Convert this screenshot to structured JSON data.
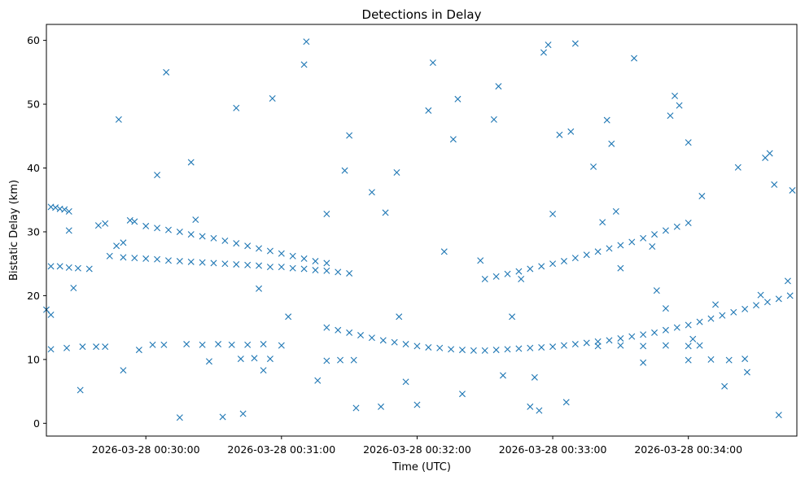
{
  "chart_data": {
    "type": "scatter",
    "title": "Detections in Delay",
    "xlabel": "Time (UTC)",
    "ylabel": "Bistatic Delay (km)",
    "x_ticks": [
      "2026-03-28 00:30:00",
      "2026-03-28 00:31:00",
      "2026-03-28 00:32:00",
      "2026-03-28 00:33:00",
      "2026-03-28 00:34:00"
    ],
    "y_ticks": [
      0,
      10,
      20,
      30,
      40,
      50,
      60
    ],
    "xlim": [
      "2026-03-28 00:29:16",
      "2026-03-28 00:34:48"
    ],
    "ylim": [
      -2,
      62.5
    ],
    "grid": false,
    "marker": "x",
    "color": "#1f77b4",
    "series": [
      {
        "points": [
          [
            "00:29:18",
            33.9
          ],
          [
            "00:29:20",
            33.8
          ],
          [
            "00:29:22",
            33.6
          ],
          [
            "00:29:24",
            33.5
          ],
          [
            "00:29:26",
            33.2
          ],
          [
            "00:29:39",
            31.0
          ],
          [
            "00:29:42",
            31.3
          ],
          [
            "00:29:47",
            27.8
          ],
          [
            "00:29:50",
            28.3
          ],
          [
            "00:29:53",
            31.8
          ],
          [
            "00:29:55",
            31.6
          ],
          [
            "00:30:00",
            30.9
          ],
          [
            "00:30:05",
            30.6
          ],
          [
            "00:30:10",
            30.3
          ],
          [
            "00:30:15",
            30.0
          ],
          [
            "00:30:20",
            29.6
          ],
          [
            "00:30:25",
            29.3
          ],
          [
            "00:30:30",
            29.0
          ],
          [
            "00:30:35",
            28.6
          ],
          [
            "00:30:40",
            28.2
          ],
          [
            "00:30:45",
            27.8
          ],
          [
            "00:30:50",
            27.4
          ],
          [
            "00:30:55",
            27.0
          ],
          [
            "00:31:00",
            26.6
          ],
          [
            "00:31:05",
            26.2
          ],
          [
            "00:31:10",
            25.8
          ],
          [
            "00:31:15",
            25.4
          ],
          [
            "00:31:20",
            25.1
          ],
          [
            "00:29:18",
            24.6
          ],
          [
            "00:29:22",
            24.6
          ],
          [
            "00:29:26",
            24.4
          ],
          [
            "00:29:30",
            24.3
          ],
          [
            "00:29:35",
            24.2
          ],
          [
            "00:29:44",
            26.2
          ],
          [
            "00:29:50",
            26.0
          ],
          [
            "00:29:55",
            25.9
          ],
          [
            "00:30:00",
            25.8
          ],
          [
            "00:30:05",
            25.7
          ],
          [
            "00:30:10",
            25.5
          ],
          [
            "00:30:15",
            25.4
          ],
          [
            "00:30:20",
            25.3
          ],
          [
            "00:30:25",
            25.2
          ],
          [
            "00:30:30",
            25.1
          ],
          [
            "00:30:35",
            25.0
          ],
          [
            "00:30:40",
            24.9
          ],
          [
            "00:30:45",
            24.8
          ],
          [
            "00:30:50",
            24.7
          ],
          [
            "00:30:55",
            24.5
          ],
          [
            "00:31:00",
            24.5
          ],
          [
            "00:31:05",
            24.3
          ],
          [
            "00:31:10",
            24.2
          ],
          [
            "00:31:15",
            24.0
          ],
          [
            "00:31:20",
            23.9
          ],
          [
            "00:31:25",
            23.7
          ],
          [
            "00:31:30",
            23.5
          ],
          [
            "00:29:18",
            11.6
          ],
          [
            "00:29:25",
            11.8
          ],
          [
            "00:29:32",
            12.0
          ],
          [
            "00:29:38",
            12.0
          ],
          [
            "00:29:42",
            12.0
          ],
          [
            "00:30:03",
            12.3
          ],
          [
            "00:30:08",
            12.3
          ],
          [
            "00:30:18",
            12.4
          ],
          [
            "00:30:25",
            12.3
          ],
          [
            "00:30:32",
            12.4
          ],
          [
            "00:30:38",
            12.3
          ],
          [
            "00:30:45",
            12.3
          ],
          [
            "00:30:52",
            12.4
          ],
          [
            "00:31:00",
            12.2
          ],
          [
            "00:30:42",
            10.1
          ],
          [
            "00:30:48",
            10.2
          ],
          [
            "00:30:55",
            10.1
          ],
          [
            "00:31:20",
            9.8
          ],
          [
            "00:31:26",
            9.9
          ],
          [
            "00:31:32",
            9.9
          ],
          [
            "00:31:20",
            15.0
          ],
          [
            "00:31:25",
            14.6
          ],
          [
            "00:31:30",
            14.2
          ],
          [
            "00:31:35",
            13.8
          ],
          [
            "00:31:40",
            13.4
          ],
          [
            "00:31:45",
            13.0
          ],
          [
            "00:31:50",
            12.7
          ],
          [
            "00:31:55",
            12.4
          ],
          [
            "00:32:00",
            12.1
          ],
          [
            "00:32:05",
            11.9
          ],
          [
            "00:32:10",
            11.8
          ],
          [
            "00:32:15",
            11.6
          ],
          [
            "00:32:20",
            11.5
          ],
          [
            "00:32:25",
            11.4
          ],
          [
            "00:32:30",
            11.4
          ],
          [
            "00:32:35",
            11.5
          ],
          [
            "00:32:40",
            11.6
          ],
          [
            "00:32:45",
            11.7
          ],
          [
            "00:32:50",
            11.8
          ],
          [
            "00:32:55",
            11.9
          ],
          [
            "00:33:00",
            12.0
          ],
          [
            "00:33:05",
            12.2
          ],
          [
            "00:33:10",
            12.4
          ],
          [
            "00:33:15",
            12.6
          ],
          [
            "00:33:20",
            12.8
          ],
          [
            "00:33:25",
            13.0
          ],
          [
            "00:33:30",
            13.3
          ],
          [
            "00:33:35",
            13.6
          ],
          [
            "00:33:40",
            13.9
          ],
          [
            "00:33:45",
            14.2
          ],
          [
            "00:33:50",
            14.6
          ],
          [
            "00:33:55",
            15.0
          ],
          [
            "00:34:00",
            15.4
          ],
          [
            "00:34:05",
            15.9
          ],
          [
            "00:34:10",
            16.4
          ],
          [
            "00:34:15",
            16.9
          ],
          [
            "00:34:20",
            17.4
          ],
          [
            "00:34:25",
            17.9
          ],
          [
            "00:34:30",
            18.5
          ],
          [
            "00:34:35",
            19.0
          ],
          [
            "00:34:40",
            19.5
          ],
          [
            "00:34:45",
            20.0
          ],
          [
            "00:32:30",
            22.6
          ],
          [
            "00:32:35",
            23.0
          ],
          [
            "00:32:40",
            23.4
          ],
          [
            "00:32:45",
            23.8
          ],
          [
            "00:32:50",
            24.2
          ],
          [
            "00:32:55",
            24.6
          ],
          [
            "00:33:00",
            25.0
          ],
          [
            "00:33:05",
            25.4
          ],
          [
            "00:33:10",
            25.9
          ],
          [
            "00:33:15",
            26.4
          ],
          [
            "00:33:20",
            26.9
          ],
          [
            "00:33:25",
            27.4
          ],
          [
            "00:33:30",
            27.9
          ],
          [
            "00:33:35",
            28.4
          ],
          [
            "00:33:40",
            29.0
          ],
          [
            "00:33:45",
            29.6
          ],
          [
            "00:33:50",
            30.2
          ],
          [
            "00:33:55",
            30.8
          ],
          [
            "00:34:00",
            31.4
          ],
          [
            "00:33:20",
            12.1
          ],
          [
            "00:33:30",
            12.2
          ],
          [
            "00:33:40",
            12.1
          ],
          [
            "00:33:50",
            12.2
          ],
          [
            "00:34:00",
            12.1
          ],
          [
            "00:34:05",
            12.2
          ],
          [
            "00:34:00",
            9.9
          ],
          [
            "00:34:10",
            10.0
          ],
          [
            "00:34:18",
            9.9
          ],
          [
            "00:34:25",
            10.1
          ],
          [
            "00:29:16",
            17.8
          ],
          [
            "00:29:18",
            17.0
          ],
          [
            "00:29:26",
            30.2
          ],
          [
            "00:29:28",
            21.2
          ],
          [
            "00:29:31",
            5.2
          ],
          [
            "00:29:48",
            47.6
          ],
          [
            "00:29:50",
            8.3
          ],
          [
            "00:29:57",
            11.5
          ],
          [
            "00:30:05",
            38.9
          ],
          [
            "00:30:09",
            55.0
          ],
          [
            "00:30:15",
            0.9
          ],
          [
            "00:30:20",
            40.9
          ],
          [
            "00:30:22",
            31.9
          ],
          [
            "00:30:28",
            9.7
          ],
          [
            "00:30:34",
            1.0
          ],
          [
            "00:30:40",
            49.4
          ],
          [
            "00:30:43",
            1.5
          ],
          [
            "00:30:50",
            21.1
          ],
          [
            "00:30:52",
            8.3
          ],
          [
            "00:30:56",
            50.9
          ],
          [
            "00:31:03",
            16.7
          ],
          [
            "00:31:10",
            56.2
          ],
          [
            "00:31:11",
            59.8
          ],
          [
            "00:31:16",
            6.7
          ],
          [
            "00:31:20",
            32.8
          ],
          [
            "00:31:28",
            39.6
          ],
          [
            "00:31:30",
            45.1
          ],
          [
            "00:31:33",
            2.4
          ],
          [
            "00:31:40",
            36.2
          ],
          [
            "00:31:44",
            2.6
          ],
          [
            "00:31:46",
            33.0
          ],
          [
            "00:31:51",
            39.3
          ],
          [
            "00:31:52",
            16.7
          ],
          [
            "00:31:55",
            6.5
          ],
          [
            "00:32:00",
            2.9
          ],
          [
            "00:32:05",
            49.0
          ],
          [
            "00:32:07",
            56.5
          ],
          [
            "00:32:12",
            26.9
          ],
          [
            "00:32:16",
            44.5
          ],
          [
            "00:32:18",
            50.8
          ],
          [
            "00:32:20",
            4.6
          ],
          [
            "00:32:28",
            25.5
          ],
          [
            "00:32:34",
            47.6
          ],
          [
            "00:32:36",
            52.8
          ],
          [
            "00:32:38",
            7.5
          ],
          [
            "00:32:42",
            16.7
          ],
          [
            "00:32:46",
            22.6
          ],
          [
            "00:32:50",
            2.6
          ],
          [
            "00:32:52",
            7.2
          ],
          [
            "00:32:54",
            2.0
          ],
          [
            "00:32:56",
            58.1
          ],
          [
            "00:32:58",
            59.3
          ],
          [
            "00:33:00",
            32.8
          ],
          [
            "00:33:03",
            45.2
          ],
          [
            "00:33:06",
            3.3
          ],
          [
            "00:33:08",
            45.7
          ],
          [
            "00:33:10",
            59.5
          ],
          [
            "00:33:18",
            40.2
          ],
          [
            "00:33:22",
            31.5
          ],
          [
            "00:33:24",
            47.5
          ],
          [
            "00:33:26",
            43.8
          ],
          [
            "00:33:28",
            33.2
          ],
          [
            "00:33:30",
            24.3
          ],
          [
            "00:33:36",
            57.2
          ],
          [
            "00:33:40",
            9.5
          ],
          [
            "00:33:44",
            27.7
          ],
          [
            "00:33:46",
            20.8
          ],
          [
            "00:33:50",
            18.0
          ],
          [
            "00:33:52",
            48.2
          ],
          [
            "00:33:54",
            51.3
          ],
          [
            "00:33:56",
            49.8
          ],
          [
            "00:34:00",
            44.0
          ],
          [
            "00:34:02",
            13.2
          ],
          [
            "00:34:06",
            35.6
          ],
          [
            "00:34:12",
            18.6
          ],
          [
            "00:34:16",
            5.8
          ],
          [
            "00:34:22",
            40.1
          ],
          [
            "00:34:26",
            8.0
          ],
          [
            "00:34:32",
            20.1
          ],
          [
            "00:34:34",
            41.6
          ],
          [
            "00:34:36",
            42.3
          ],
          [
            "00:34:38",
            37.4
          ],
          [
            "00:34:40",
            1.3
          ],
          [
            "00:34:44",
            22.3
          ],
          [
            "00:34:46",
            36.5
          ]
        ]
      }
    ]
  }
}
